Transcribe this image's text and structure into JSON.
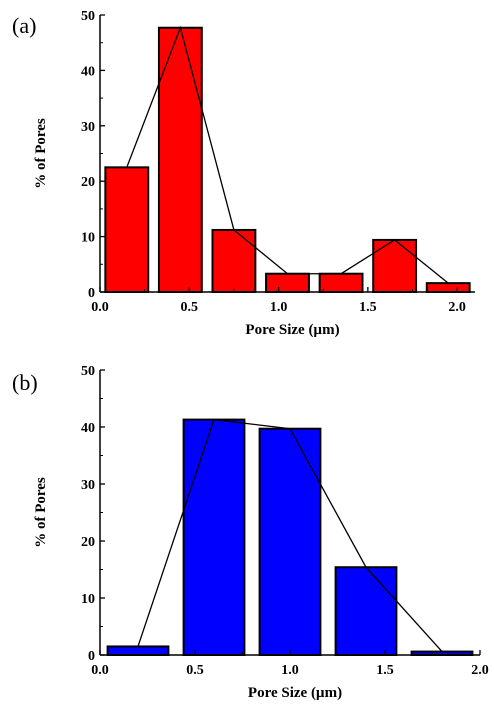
{
  "chart_data": [
    {
      "type": "bar",
      "panel_label": "(a)",
      "xlabel": "Pore Size (µm)",
      "ylabel": "% of Pores",
      "xlim": [
        0.0,
        2.1
      ],
      "ylim": [
        0,
        50
      ],
      "xticks": [
        "0.0",
        "0.5",
        "1.0",
        "1.5",
        "2.0"
      ],
      "xtick_values": [
        0.0,
        0.5,
        1.0,
        1.5,
        2.0
      ],
      "yticks": [
        "0",
        "10",
        "20",
        "30",
        "40",
        "50"
      ],
      "ytick_values": [
        0,
        10,
        20,
        30,
        40,
        50
      ],
      "bar_color": "#ff0000",
      "bin_width": 0.3,
      "bar_fraction": 0.8,
      "x": [
        0.15,
        0.45,
        0.75,
        1.05,
        1.35,
        1.65,
        1.95
      ],
      "values": [
        22.5,
        47.7,
        11.2,
        3.3,
        3.3,
        9.4,
        1.6
      ],
      "polygon_line": true
    },
    {
      "type": "bar",
      "panel_label": "(b)",
      "xlabel": "Pore Size (µm)",
      "ylabel": "% of Pores",
      "xlim": [
        0.0,
        2.0
      ],
      "ylim": [
        0,
        50
      ],
      "xticks": [
        "0.0",
        "0.5",
        "1.0",
        "1.5",
        "2.0"
      ],
      "xtick_values": [
        0.0,
        0.5,
        1.0,
        1.5,
        2.0
      ],
      "yticks": [
        "0",
        "10",
        "20",
        "30",
        "40",
        "50"
      ],
      "ytick_values": [
        0,
        10,
        20,
        30,
        40,
        50
      ],
      "bar_color": "#0000ff",
      "bin_width": 0.4,
      "bar_fraction": 0.8,
      "x": [
        0.2,
        0.6,
        1.0,
        1.4,
        1.8
      ],
      "values": [
        1.5,
        41.3,
        39.7,
        15.4,
        0.6
      ],
      "polygon_line": true
    }
  ]
}
